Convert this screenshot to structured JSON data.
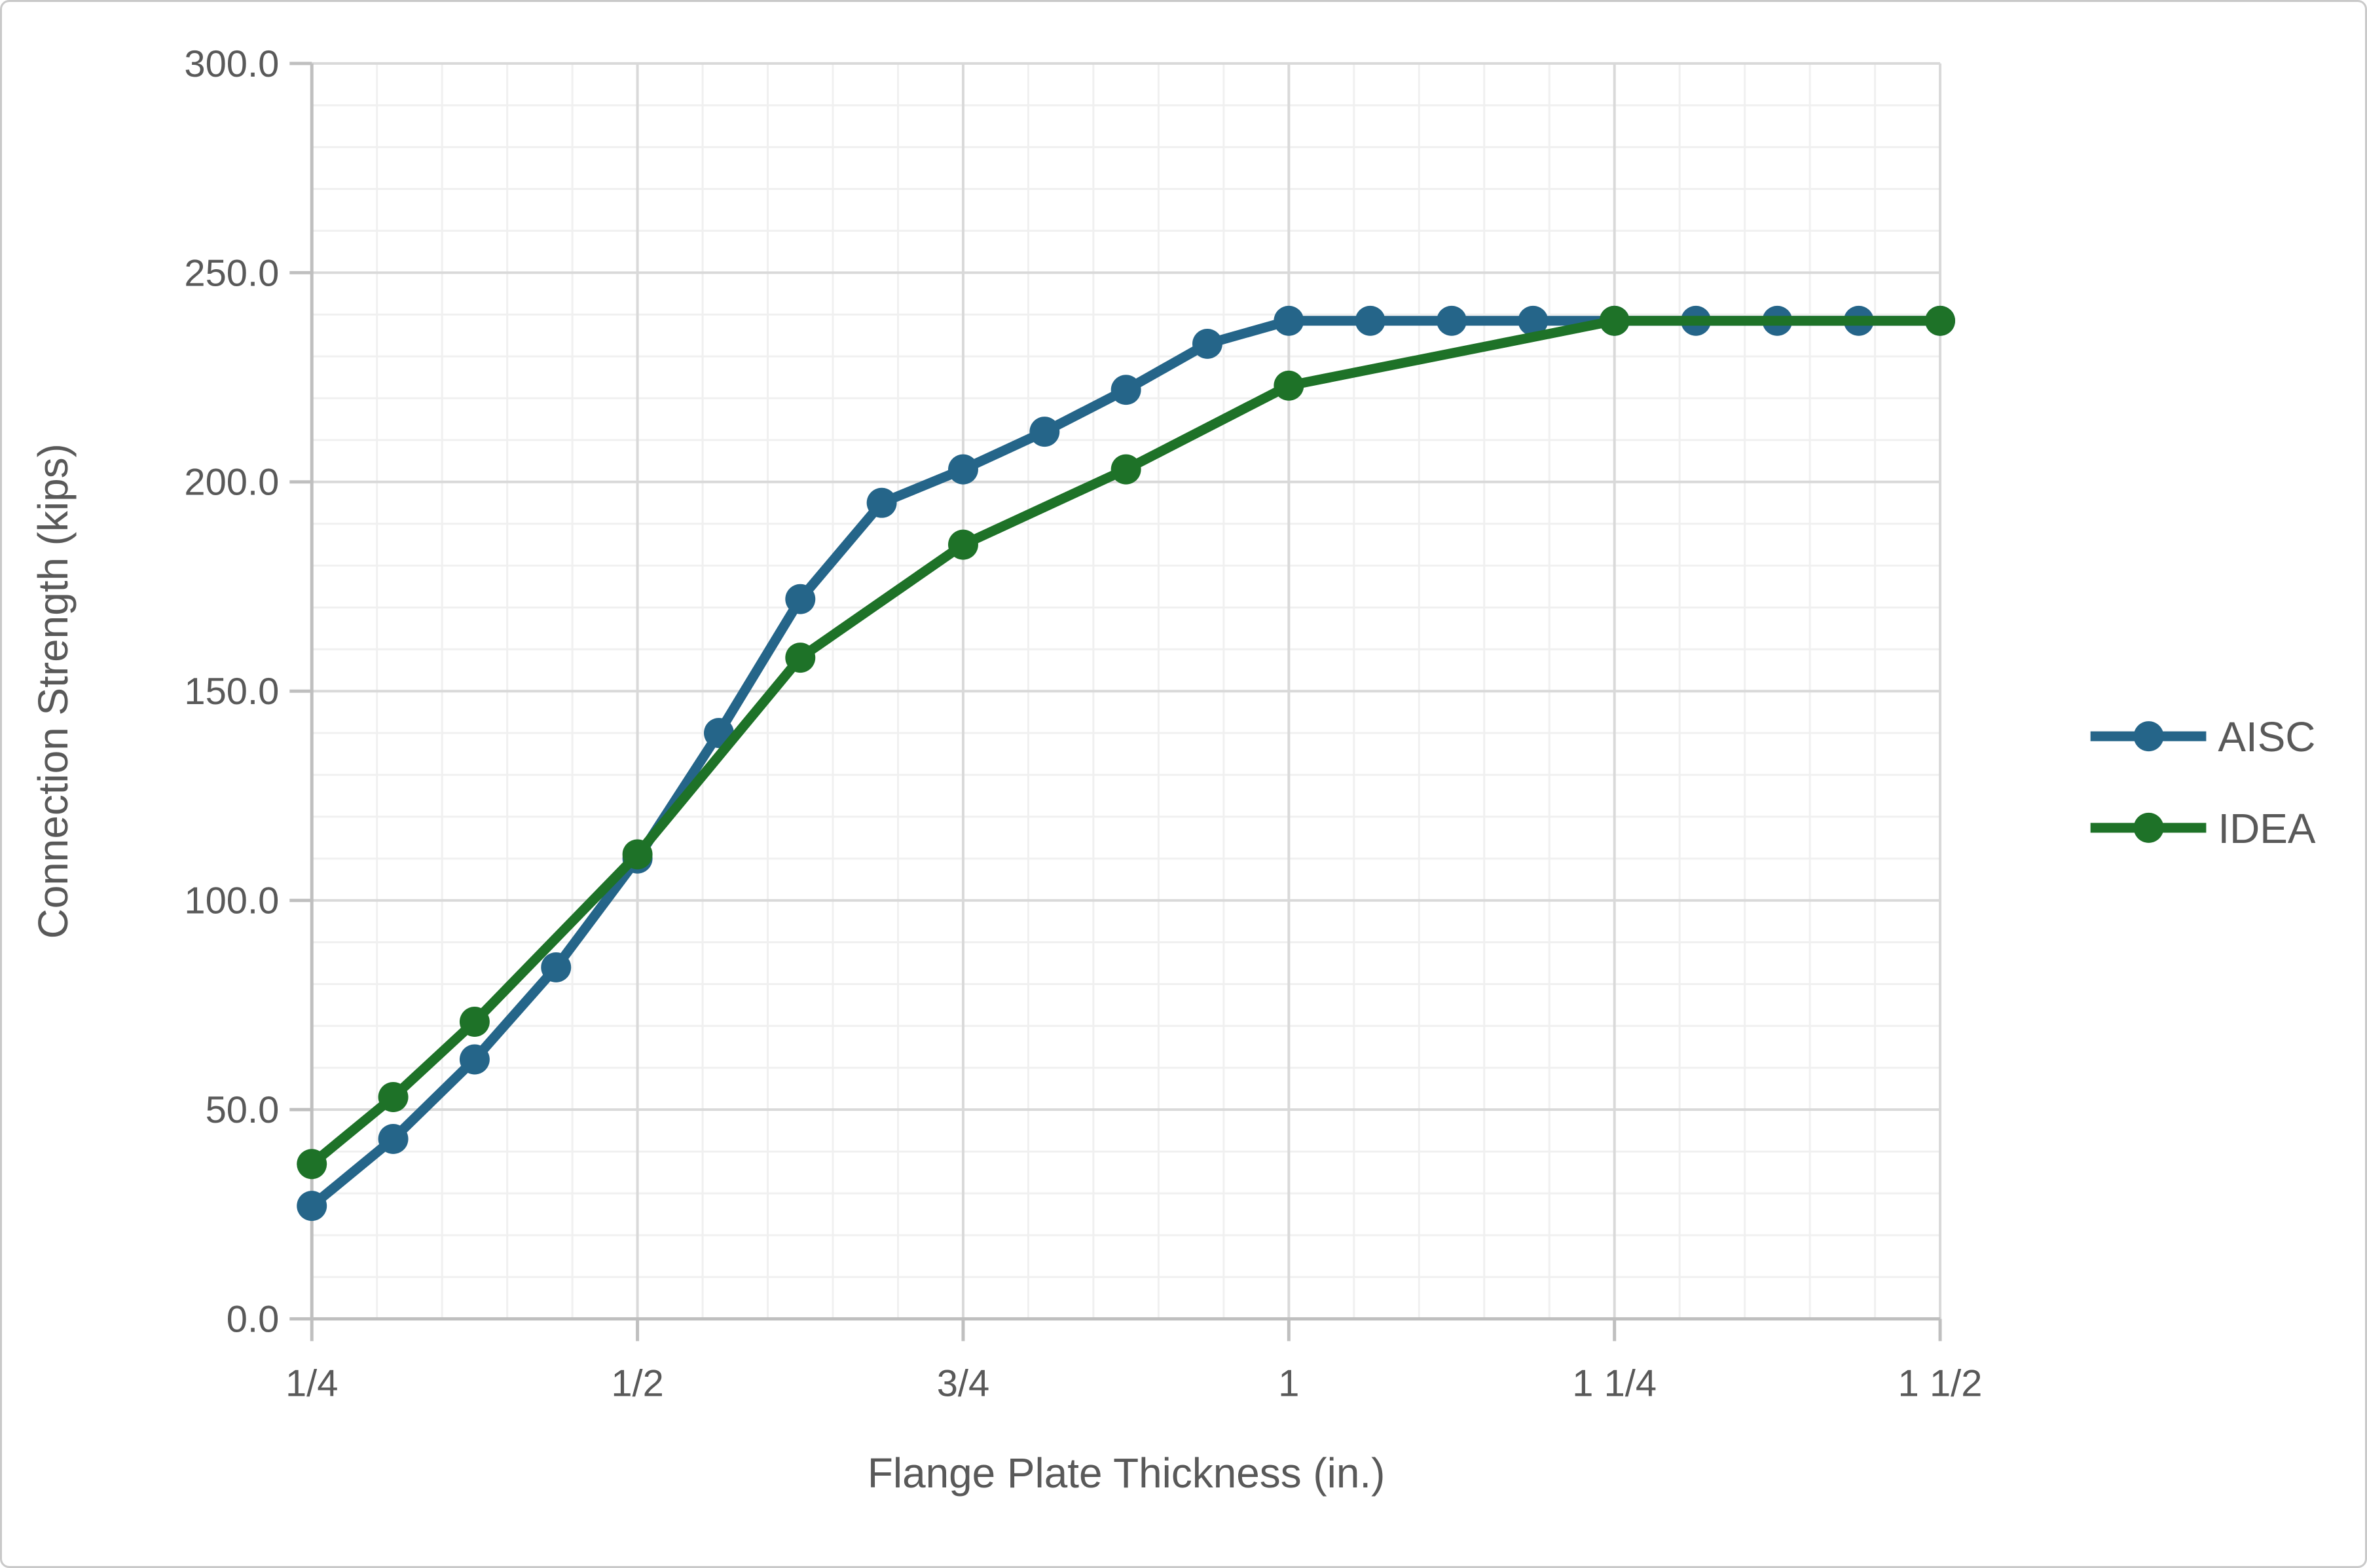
{
  "chart_data": {
    "type": "line",
    "title": "",
    "xlabel": "Flange Plate Thickness (in.)",
    "ylabel": "Connection Strength (kips)",
    "xlim": [
      0.25,
      1.5
    ],
    "ylim": [
      0,
      300
    ],
    "x_major_unit": 0.25,
    "x_minor_unit": 0.05,
    "y_major_unit": 50,
    "y_minor_unit": 10,
    "grid": true,
    "legend_position": "right",
    "x_tick_labels": [
      {
        "x": 0.25,
        "label": "1/4"
      },
      {
        "x": 0.5,
        "label": "1/2"
      },
      {
        "x": 0.75,
        "label": "3/4"
      },
      {
        "x": 1,
        "label": "1"
      },
      {
        "x": 1.25,
        "label": "1 1/4"
      },
      {
        "x": 1.5,
        "label": "1 1/2"
      }
    ],
    "y_tick_labels": [
      {
        "y": 0,
        "label": "0.0"
      },
      {
        "y": 50,
        "label": "50.0"
      },
      {
        "y": 100,
        "label": "100.0"
      },
      {
        "y": 150,
        "label": "150.0"
      },
      {
        "y": 200,
        "label": "200.0"
      },
      {
        "y": 250,
        "label": "250.0"
      },
      {
        "y": 300,
        "label": "300.0"
      }
    ],
    "series": [
      {
        "name": "AISC",
        "color": "#256589",
        "x": [
          0.25,
          0.3125,
          0.375,
          0.4375,
          0.5,
          0.5625,
          0.625,
          0.6875,
          0.75,
          0.8125,
          0.875,
          0.9375,
          1,
          1.0625,
          1.125,
          1.1875,
          1.25,
          1.3125,
          1.375,
          1.4375,
          1.5
        ],
        "values": [
          27,
          43,
          62,
          84,
          110,
          140,
          172,
          195,
          203,
          212,
          222,
          233,
          238.5,
          238.5,
          238.5,
          238.5,
          238.5,
          238.5,
          238.5,
          238.5,
          238.5
        ]
      },
      {
        "name": "IDEA",
        "color": "#1E7228",
        "x": [
          0.25,
          0.3125,
          0.375,
          0.5,
          0.625,
          0.75,
          0.875,
          1,
          1.25,
          1.5
        ],
        "values": [
          37,
          53,
          71,
          111,
          158,
          185,
          203,
          223,
          238.5,
          238.5
        ]
      }
    ],
    "colors": {
      "text": "#595959",
      "axis": "#BFBFBF",
      "grid_major": "#D9D9D9",
      "grid_minor": "#F0F0F0"
    }
  }
}
